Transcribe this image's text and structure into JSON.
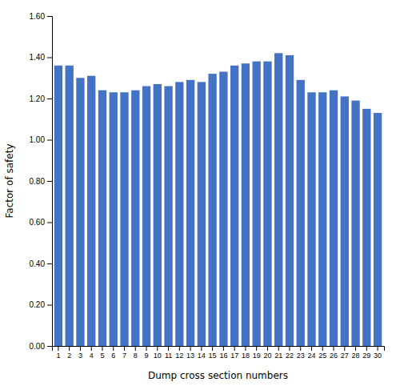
{
  "chart_data": {
    "type": "bar",
    "categories": [
      1,
      2,
      3,
      4,
      5,
      6,
      7,
      8,
      9,
      10,
      11,
      12,
      13,
      14,
      15,
      16,
      17,
      18,
      19,
      20,
      21,
      22,
      23,
      24,
      25,
      26,
      27,
      28,
      29,
      30
    ],
    "values": [
      1.36,
      1.36,
      1.3,
      1.31,
      1.24,
      1.23,
      1.23,
      1.24,
      1.26,
      1.27,
      1.26,
      1.28,
      1.29,
      1.28,
      1.32,
      1.33,
      1.36,
      1.37,
      1.38,
      1.38,
      1.42,
      1.41,
      1.29,
      1.23,
      1.23,
      1.24,
      1.21,
      1.19,
      1.15,
      1.13
    ],
    "color": "#4472C4",
    "xlabel": "Dump cross section numbers",
    "ylabel": "Factor of safety",
    "ylim": [
      0.0,
      1.6
    ],
    "yticks": [
      {
        "value": 0.0,
        "label": "0.00"
      },
      {
        "value": 0.2,
        "label": "0.20"
      },
      {
        "value": 0.4,
        "label": "0.40"
      },
      {
        "value": 0.6,
        "label": "0.60"
      },
      {
        "value": 0.8,
        "label": "0.80"
      },
      {
        "value": 1.0,
        "label": "1.00"
      },
      {
        "value": 1.2,
        "label": "1.20"
      },
      {
        "value": 1.4,
        "label": "1.40"
      },
      {
        "value": 1.6,
        "label": "1.60"
      }
    ],
    "grid": false
  }
}
